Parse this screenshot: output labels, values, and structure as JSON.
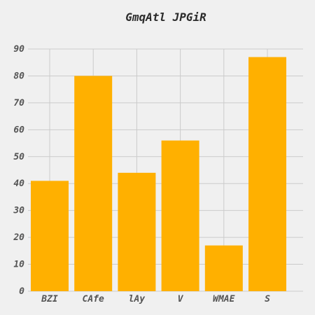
{
  "chart_data": {
    "type": "bar",
    "title": "GmqAtl JPGiR",
    "xlabel": "",
    "ylabel": "",
    "categories": [
      "BZI",
      "CAfe",
      "lAy",
      "V",
      "WMAE",
      "S"
    ],
    "values": [
      41,
      80,
      44,
      56,
      17,
      87
    ],
    "ylim": [
      0,
      90
    ],
    "yticks": [
      0,
      10,
      20,
      30,
      40,
      50,
      60,
      70,
      80,
      90
    ],
    "grid": true,
    "legend": "none",
    "bar_color": "#ffb000",
    "background_color": "#f0f0f0",
    "grid_color": "#cbcbcb"
  }
}
